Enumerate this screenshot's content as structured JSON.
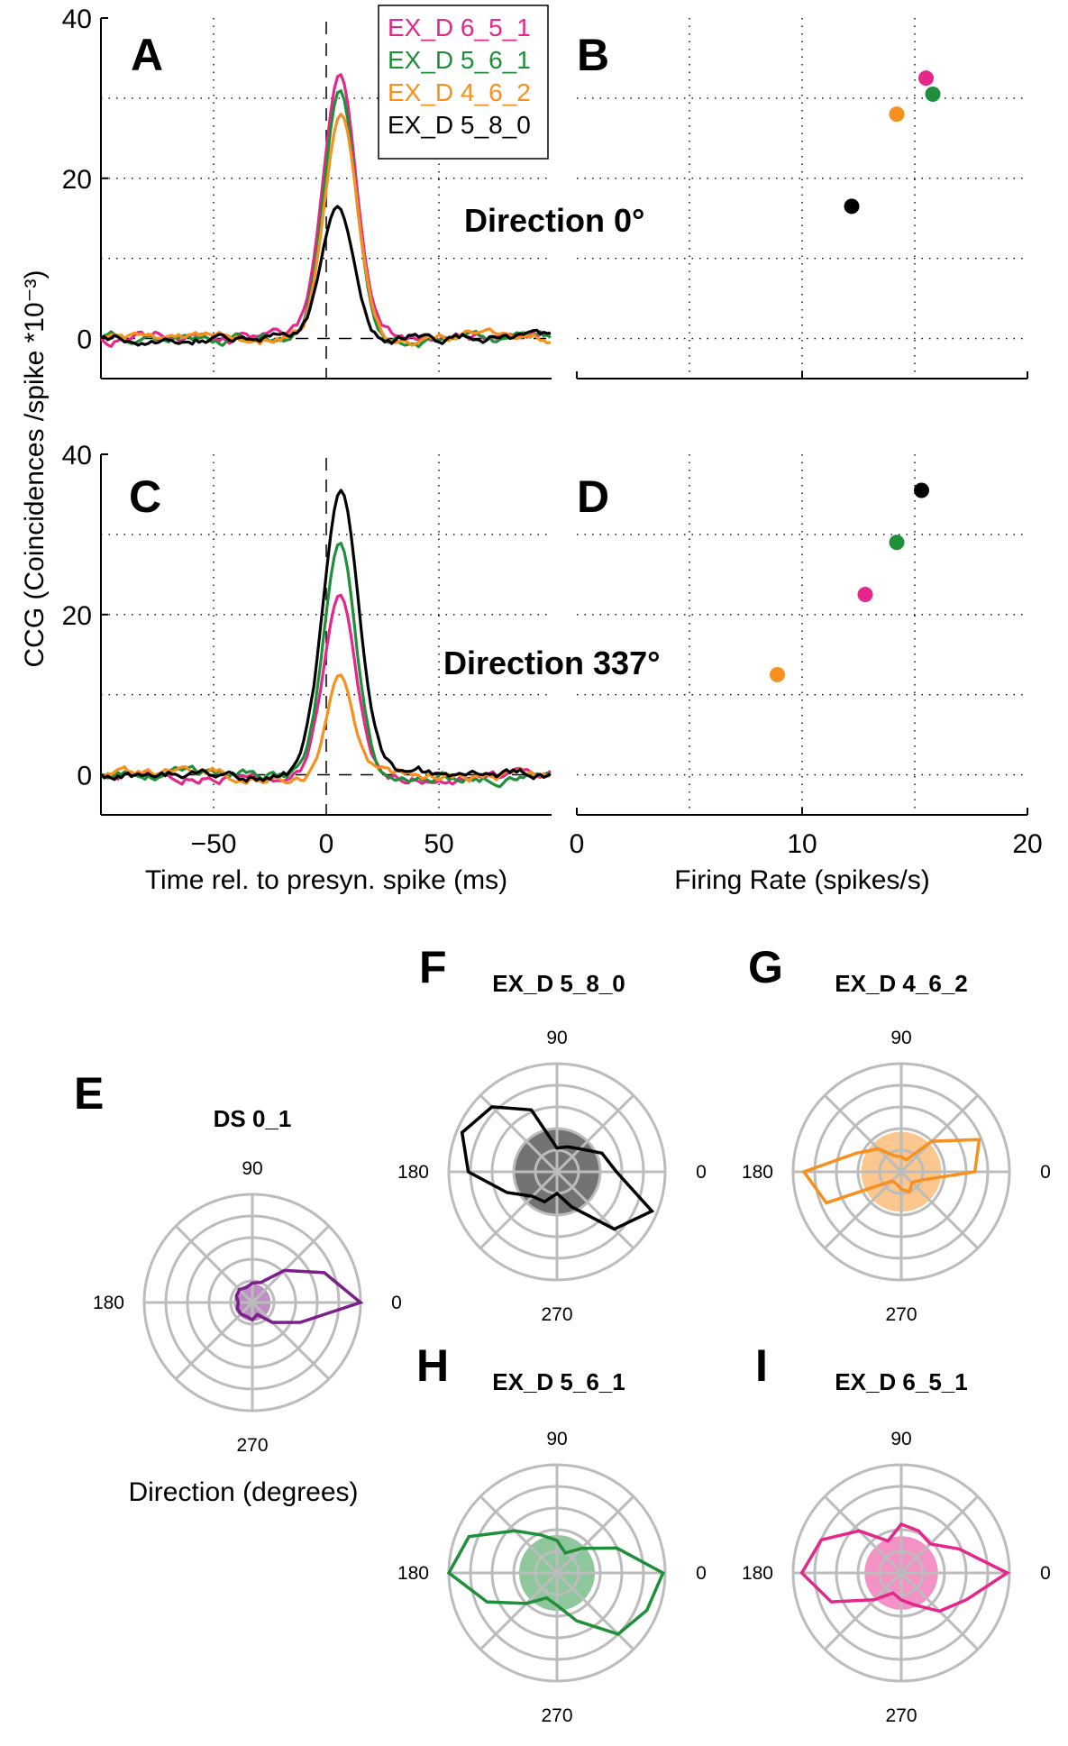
{
  "figure": {
    "y_axis_label": "CCG (Coincidences /spike *10⁻³)",
    "polar_axis_label": "Direction (degrees)"
  },
  "colors": {
    "EX_D 6_5_1": "#e5268b",
    "EX_D 5_6_1": "#1f8f3a",
    "EX_D 4_6_2": "#f7901e",
    "EX_D 5_8_0": "#000000",
    "DS 0_1": "#7b1f8a"
  },
  "legend": [
    "EX_D 6_5_1",
    "EX_D 5_6_1",
    "EX_D 4_6_2",
    "EX_D 5_8_0"
  ],
  "chart_data": [
    {
      "panel": "A",
      "type": "line",
      "annotation": "Direction 0°",
      "xlabel": "",
      "ylabel": "CCG (Coincidences /spike *10⁻³)",
      "xlim": [
        -100,
        100
      ],
      "ylim": [
        -5,
        40
      ],
      "yticks": [
        "0",
        "20",
        "40"
      ],
      "series": [
        {
          "name": "EX_D 6_5_1",
          "peak": 33,
          "peak_lag": 6,
          "width": 7.2
        },
        {
          "name": "EX_D 5_6_1",
          "peak": 31,
          "peak_lag": 6,
          "width": 7.0
        },
        {
          "name": "EX_D 4_6_2",
          "peak": 28,
          "peak_lag": 6.5,
          "width": 7.2
        },
        {
          "name": "EX_D 5_8_0",
          "peak": 16.5,
          "peak_lag": 5,
          "width": 7.0
        }
      ]
    },
    {
      "panel": "B",
      "type": "scatter",
      "xlabel": "",
      "ylabel": "",
      "xlim": [
        0,
        20
      ],
      "ylim": [
        -5,
        40
      ],
      "points": [
        {
          "name": "EX_D 6_5_1",
          "x": 15.5,
          "y": 32.5
        },
        {
          "name": "EX_D 5_6_1",
          "x": 15.8,
          "y": 30.5
        },
        {
          "name": "EX_D 4_6_2",
          "x": 14.2,
          "y": 28
        },
        {
          "name": "EX_D 5_8_0",
          "x": 12.2,
          "y": 16.5
        }
      ]
    },
    {
      "panel": "C",
      "type": "line",
      "annotation": "Direction 337°",
      "xlabel": "Time rel. to presyn. spike (ms)",
      "ylabel": "CCG (Coincidences /spike *10⁻³)",
      "xlim": [
        -100,
        100
      ],
      "ylim": [
        -5,
        40
      ],
      "xticks": [
        "−50",
        "0",
        "50"
      ],
      "yticks": [
        "0",
        "20",
        "40"
      ],
      "series": [
        {
          "name": "EX_D 6_5_1",
          "peak": 22.5,
          "peak_lag": 6,
          "width": 7.0
        },
        {
          "name": "EX_D 5_6_1",
          "peak": 29,
          "peak_lag": 6,
          "width": 7.0
        },
        {
          "name": "EX_D 4_6_2",
          "peak": 12.5,
          "peak_lag": 6,
          "width": 5.5
        },
        {
          "name": "EX_D 5_8_0",
          "peak": 35.5,
          "peak_lag": 6.5,
          "width": 7.8
        }
      ]
    },
    {
      "panel": "D",
      "type": "scatter",
      "xlabel": "Firing Rate (spikes/s)",
      "ylabel": "",
      "xlim": [
        0,
        20
      ],
      "ylim": [
        -5,
        40
      ],
      "xticks": [
        "0",
        "10",
        "20"
      ],
      "points": [
        {
          "name": "EX_D 5_8_0",
          "x": 15.3,
          "y": 35.5
        },
        {
          "name": "EX_D 5_6_1",
          "x": 14.2,
          "y": 29
        },
        {
          "name": "EX_D 6_5_1",
          "x": 12.8,
          "y": 22.5
        },
        {
          "name": "EX_D 4_6_2",
          "x": 8.9,
          "y": 12.5
        }
      ]
    },
    {
      "panel": "E",
      "type": "polar",
      "title": "DS 0_1",
      "angle_labels": [
        "90",
        "180",
        "0",
        "270"
      ],
      "rmax": 1,
      "fill_radius": 0.17,
      "values": [
        1.0,
        0.72,
        0.42,
        0.2,
        0.18,
        0.15,
        0.17,
        0.16,
        0.13,
        0.15,
        0.15,
        0.14,
        0.16,
        0.12,
        0.26,
        0.48
      ]
    },
    {
      "panel": "F",
      "type": "polar",
      "title": "EX_D 5_8_0",
      "angle_labels": [
        "90",
        "180",
        "0",
        "270"
      ],
      "rmax": 1,
      "fill_radius": 0.39,
      "values": [
        0.55,
        0.45,
        0.3,
        0.25,
        0.22,
        0.62,
        0.85,
        0.95,
        0.82,
        0.5,
        0.32,
        0.3,
        0.2,
        0.35,
        0.75,
        0.95
      ]
    },
    {
      "panel": "G",
      "type": "polar",
      "title": "EX_D 4_6_2",
      "angle_labels": [
        "90",
        "180",
        "0",
        "270"
      ],
      "rmax": 1,
      "fill_radius": 0.37,
      "values": [
        0.68,
        0.78,
        0.4,
        0.12,
        0.14,
        0.16,
        0.3,
        0.45,
        0.9,
        0.75,
        0.12,
        0.12,
        0.16,
        0.2,
        0.14,
        0.2
      ]
    },
    {
      "panel": "H",
      "type": "polar",
      "title": "EX_D 5_6_1",
      "angle_labels": [
        "90",
        "180",
        "0",
        "270"
      ],
      "rmax": 1,
      "fill_radius": 0.35,
      "values": [
        0.98,
        0.6,
        0.32,
        0.2,
        0.3,
        0.38,
        0.55,
        0.88,
        1.0,
        0.7,
        0.4,
        0.25,
        0.3,
        0.48,
        0.8,
        0.9
      ]
    },
    {
      "panel": "I",
      "type": "polar",
      "title": "EX_D 6_5_1",
      "angle_labels": [
        "90",
        "180",
        "0",
        "270"
      ],
      "rmax": 1,
      "fill_radius": 0.34,
      "values": [
        0.98,
        0.58,
        0.38,
        0.42,
        0.45,
        0.32,
        0.55,
        0.8,
        0.92,
        0.7,
        0.35,
        0.2,
        0.25,
        0.32,
        0.5,
        0.65
      ]
    }
  ]
}
